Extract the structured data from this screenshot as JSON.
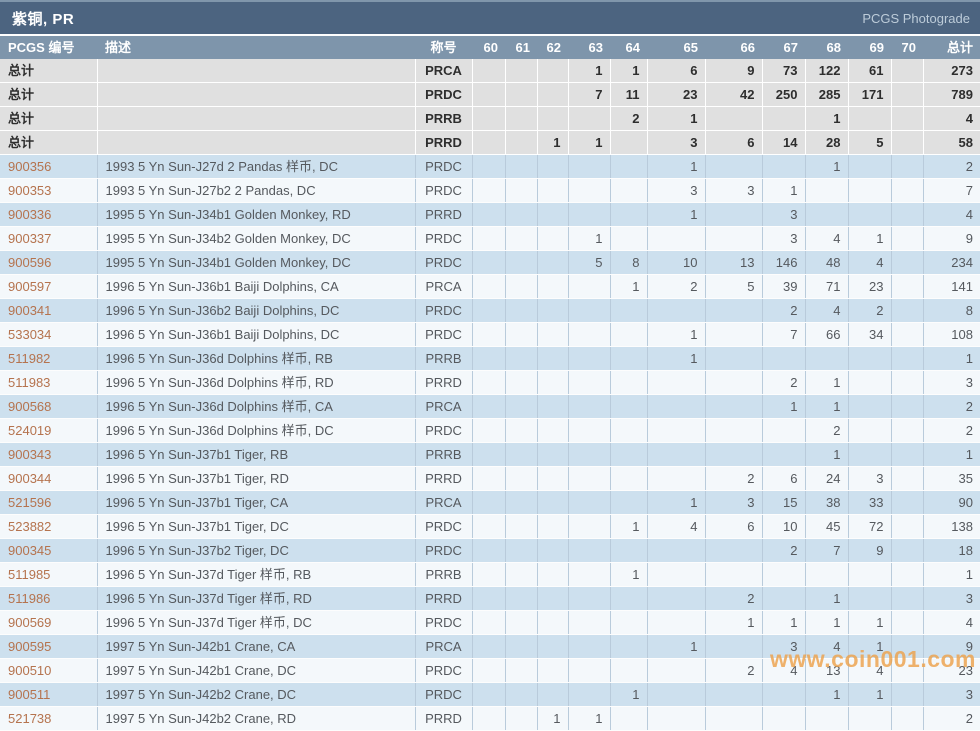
{
  "title_bar": {
    "title": "紫铜, PR",
    "link": "PCGS Photograde"
  },
  "colors": {
    "title_bg": "#4c6480",
    "header_bg": "#7e95ab",
    "summary_bg": "#e0e0e0",
    "row_blue": "#cde0ee",
    "row_white": "#f4f8fb",
    "link": "#b5734e",
    "watermark": "#eda24c"
  },
  "table": {
    "headers": {
      "pcgs": "PCGS 编号",
      "description": "描述",
      "designation": "称号",
      "grades": [
        "60",
        "61",
        "62",
        "63",
        "64",
        "65",
        "66",
        "67",
        "68",
        "69",
        "70"
      ],
      "total": "总计"
    },
    "summary_rows": [
      {
        "label": "总计",
        "designation": "PRCA",
        "values": [
          "",
          "",
          "",
          "1",
          "1",
          "6",
          "9",
          "73",
          "122",
          "61",
          ""
        ],
        "total": "273"
      },
      {
        "label": "总计",
        "designation": "PRDC",
        "values": [
          "",
          "",
          "",
          "7",
          "11",
          "23",
          "42",
          "250",
          "285",
          "171",
          ""
        ],
        "total": "789"
      },
      {
        "label": "总计",
        "designation": "PRRB",
        "values": [
          "",
          "",
          "",
          "",
          "2",
          "1",
          "",
          "",
          "1",
          "",
          ""
        ],
        "total": "4"
      },
      {
        "label": "总计",
        "designation": "PRRD",
        "values": [
          "",
          "",
          "1",
          "1",
          "",
          "3",
          "6",
          "14",
          "28",
          "5",
          ""
        ],
        "total": "58"
      }
    ],
    "rows": [
      {
        "pcgs": "900356",
        "description": "1993 5 Yn Sun-J27d 2 Pandas 样币, DC",
        "designation": "PRDC",
        "values": [
          "",
          "",
          "",
          "",
          "",
          "1",
          "",
          "",
          "1",
          "",
          ""
        ],
        "total": "2"
      },
      {
        "pcgs": "900353",
        "description": "1993 5 Yn Sun-J27b2 2 Pandas, DC",
        "designation": "PRDC",
        "values": [
          "",
          "",
          "",
          "",
          "",
          "3",
          "3",
          "1",
          "",
          "",
          ""
        ],
        "total": "7"
      },
      {
        "pcgs": "900336",
        "description": "1995 5 Yn Sun-J34b1 Golden Monkey, RD",
        "designation": "PRRD",
        "values": [
          "",
          "",
          "",
          "",
          "",
          "1",
          "",
          "3",
          "",
          "",
          ""
        ],
        "total": "4"
      },
      {
        "pcgs": "900337",
        "description": "1995 5 Yn Sun-J34b2 Golden Monkey, DC",
        "designation": "PRDC",
        "values": [
          "",
          "",
          "",
          "1",
          "",
          "",
          "",
          "3",
          "4",
          "1",
          ""
        ],
        "total": "9"
      },
      {
        "pcgs": "900596",
        "description": "1995 5 Yn Sun-J34b1 Golden Monkey, DC",
        "designation": "PRDC",
        "values": [
          "",
          "",
          "",
          "5",
          "8",
          "10",
          "13",
          "146",
          "48",
          "4",
          ""
        ],
        "total": "234"
      },
      {
        "pcgs": "900597",
        "description": "1996 5 Yn Sun-J36b1 Baiji Dolphins, CA",
        "designation": "PRCA",
        "values": [
          "",
          "",
          "",
          "",
          "1",
          "2",
          "5",
          "39",
          "71",
          "23",
          ""
        ],
        "total": "141"
      },
      {
        "pcgs": "900341",
        "description": "1996 5 Yn Sun-J36b2 Baiji Dolphins, DC",
        "designation": "PRDC",
        "values": [
          "",
          "",
          "",
          "",
          "",
          "",
          "",
          "2",
          "4",
          "2",
          ""
        ],
        "total": "8"
      },
      {
        "pcgs": "533034",
        "description": "1996 5 Yn Sun-J36b1 Baiji Dolphins, DC",
        "designation": "PRDC",
        "values": [
          "",
          "",
          "",
          "",
          "",
          "1",
          "",
          "7",
          "66",
          "34",
          ""
        ],
        "total": "108"
      },
      {
        "pcgs": "511982",
        "description": "1996 5 Yn Sun-J36d Dolphins 样币, RB",
        "designation": "PRRB",
        "values": [
          "",
          "",
          "",
          "",
          "",
          "1",
          "",
          "",
          "",
          "",
          ""
        ],
        "total": "1"
      },
      {
        "pcgs": "511983",
        "description": "1996 5 Yn Sun-J36d Dolphins 样币, RD",
        "designation": "PRRD",
        "values": [
          "",
          "",
          "",
          "",
          "",
          "",
          "",
          "2",
          "1",
          "",
          ""
        ],
        "total": "3"
      },
      {
        "pcgs": "900568",
        "description": "1996 5 Yn Sun-J36d Dolphins 样币, CA",
        "designation": "PRCA",
        "values": [
          "",
          "",
          "",
          "",
          "",
          "",
          "",
          "1",
          "1",
          "",
          ""
        ],
        "total": "2"
      },
      {
        "pcgs": "524019",
        "description": "1996 5 Yn Sun-J36d Dolphins 样币, DC",
        "designation": "PRDC",
        "values": [
          "",
          "",
          "",
          "",
          "",
          "",
          "",
          "",
          "2",
          "",
          ""
        ],
        "total": "2"
      },
      {
        "pcgs": "900343",
        "description": "1996 5 Yn Sun-J37b1 Tiger, RB",
        "designation": "PRRB",
        "values": [
          "",
          "",
          "",
          "",
          "",
          "",
          "",
          "",
          "1",
          "",
          ""
        ],
        "total": "1"
      },
      {
        "pcgs": "900344",
        "description": "1996 5 Yn Sun-J37b1 Tiger, RD",
        "designation": "PRRD",
        "values": [
          "",
          "",
          "",
          "",
          "",
          "",
          "2",
          "6",
          "24",
          "3",
          ""
        ],
        "total": "35"
      },
      {
        "pcgs": "521596",
        "description": "1996 5 Yn Sun-J37b1 Tiger, CA",
        "designation": "PRCA",
        "values": [
          "",
          "",
          "",
          "",
          "",
          "1",
          "3",
          "15",
          "38",
          "33",
          ""
        ],
        "total": "90"
      },
      {
        "pcgs": "523882",
        "description": "1996 5 Yn Sun-J37b1 Tiger, DC",
        "designation": "PRDC",
        "values": [
          "",
          "",
          "",
          "",
          "1",
          "4",
          "6",
          "10",
          "45",
          "72",
          ""
        ],
        "total": "138"
      },
      {
        "pcgs": "900345",
        "description": "1996 5 Yn Sun-J37b2 Tiger, DC",
        "designation": "PRDC",
        "values": [
          "",
          "",
          "",
          "",
          "",
          "",
          "",
          "2",
          "7",
          "9",
          ""
        ],
        "total": "18"
      },
      {
        "pcgs": "511985",
        "description": "1996 5 Yn Sun-J37d Tiger 样币, RB",
        "designation": "PRRB",
        "values": [
          "",
          "",
          "",
          "",
          "1",
          "",
          "",
          "",
          "",
          "",
          ""
        ],
        "total": "1"
      },
      {
        "pcgs": "511986",
        "description": "1996 5 Yn Sun-J37d Tiger 样币, RD",
        "designation": "PRRD",
        "values": [
          "",
          "",
          "",
          "",
          "",
          "",
          "2",
          "",
          "1",
          "",
          ""
        ],
        "total": "3"
      },
      {
        "pcgs": "900569",
        "description": "1996 5 Yn Sun-J37d Tiger 样币, DC",
        "designation": "PRDC",
        "values": [
          "",
          "",
          "",
          "",
          "",
          "",
          "1",
          "1",
          "1",
          "1",
          ""
        ],
        "total": "4"
      },
      {
        "pcgs": "900595",
        "description": "1997 5 Yn Sun-J42b1 Crane, CA",
        "designation": "PRCA",
        "values": [
          "",
          "",
          "",
          "",
          "",
          "1",
          "",
          "3",
          "4",
          "1",
          ""
        ],
        "total": "9"
      },
      {
        "pcgs": "900510",
        "description": "1997 5 Yn Sun-J42b1 Crane, DC",
        "designation": "PRDC",
        "values": [
          "",
          "",
          "",
          "",
          "",
          "",
          "2",
          "4",
          "13",
          "4",
          ""
        ],
        "total": "23"
      },
      {
        "pcgs": "900511",
        "description": "1997 5 Yn Sun-J42b2 Crane, DC",
        "designation": "PRDC",
        "values": [
          "",
          "",
          "",
          "",
          "1",
          "",
          "",
          "",
          "1",
          "1",
          ""
        ],
        "total": "3"
      },
      {
        "pcgs": "521738",
        "description": "1997 5 Yn Sun-J42b2 Crane, RD",
        "designation": "PRRD",
        "values": [
          "",
          "",
          "1",
          "1",
          "",
          "",
          "",
          "",
          "",
          "",
          ""
        ],
        "total": "2"
      }
    ]
  },
  "watermark_text": "www.coin001.com"
}
